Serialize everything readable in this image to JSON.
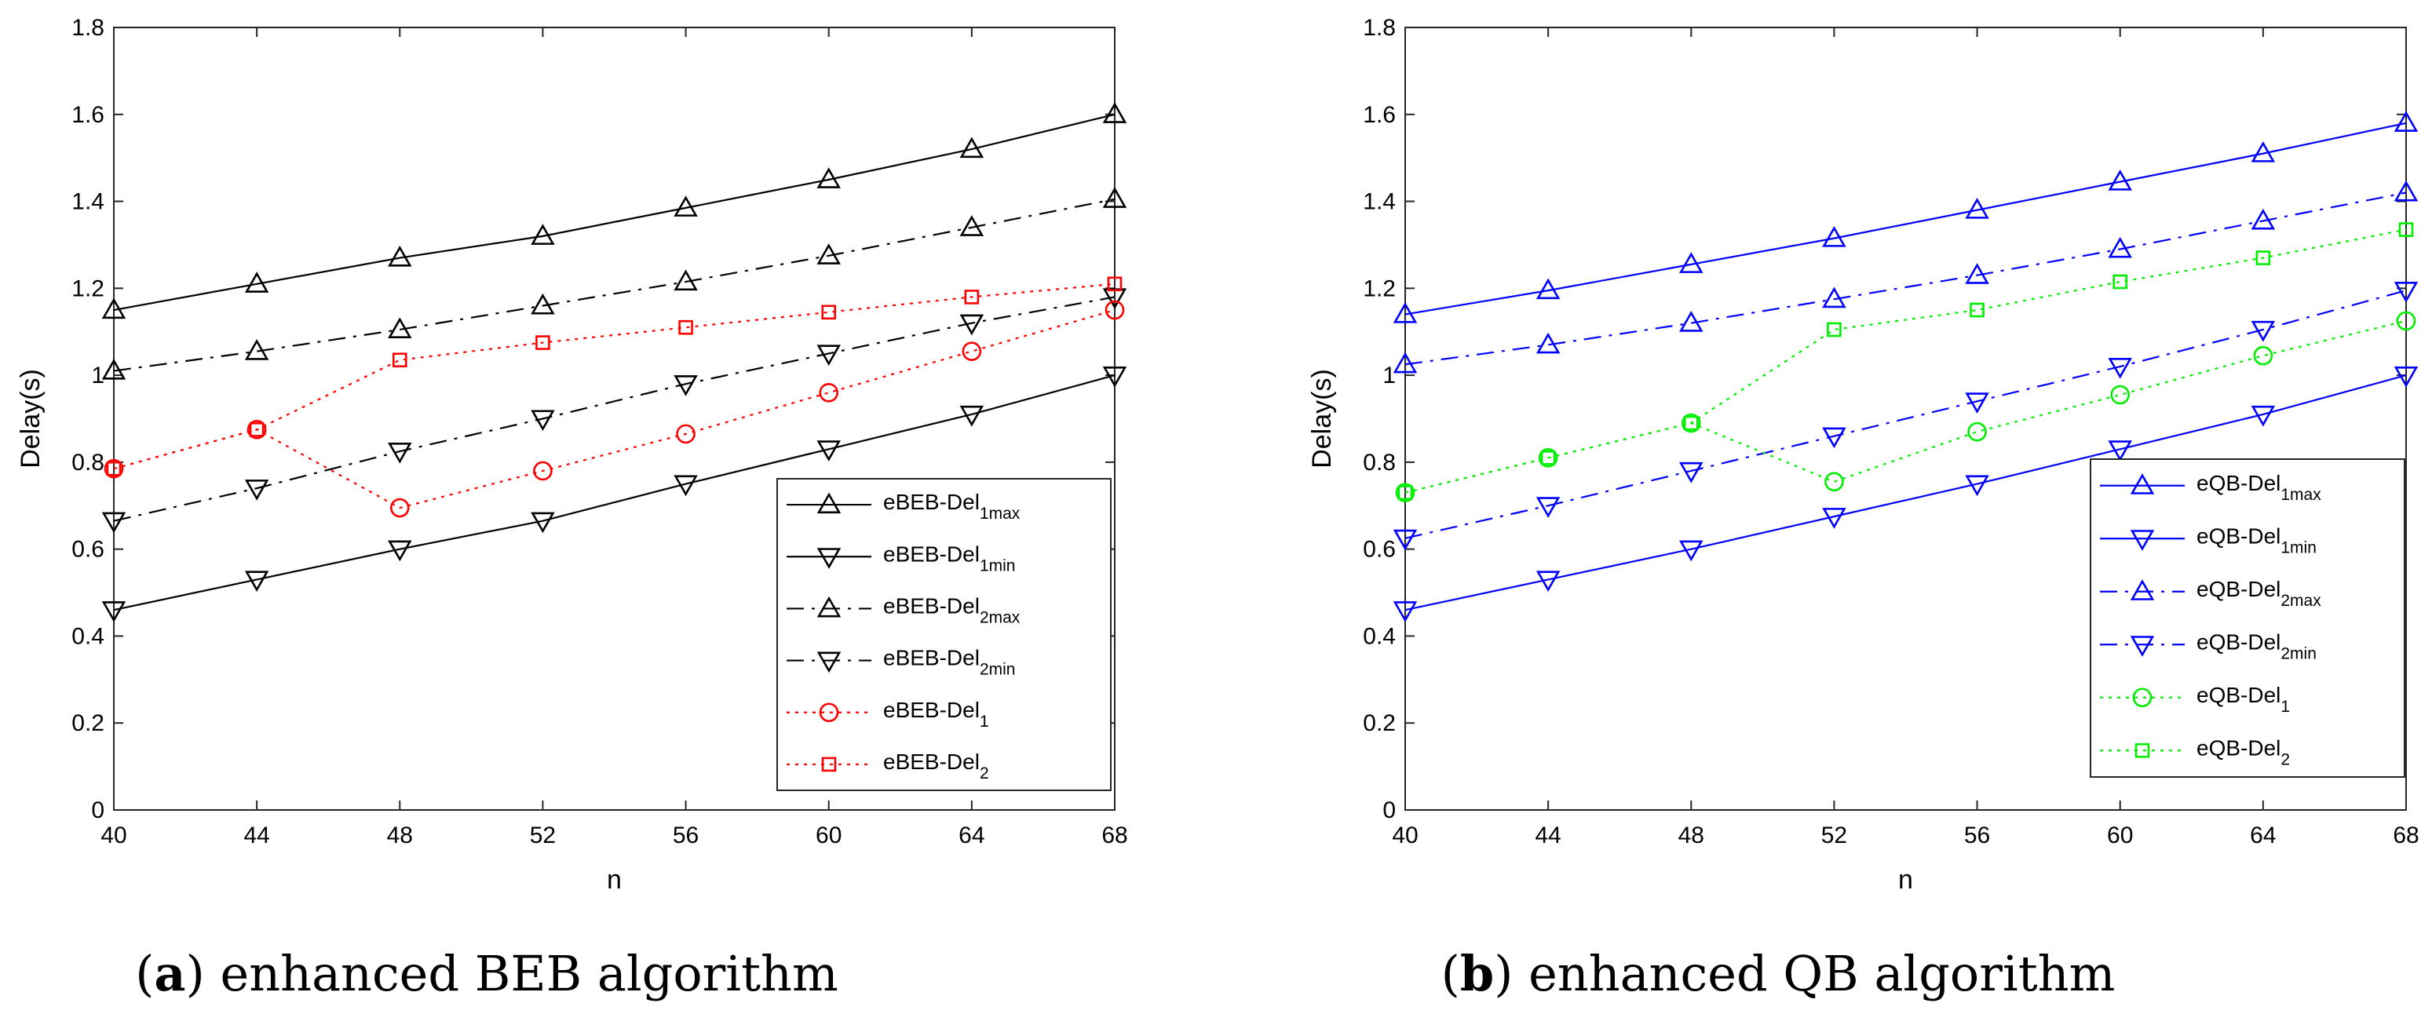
{
  "chart_data": [
    {
      "type": "line",
      "id": "a",
      "caption_letter": "a",
      "caption_text": "enhanced BEB algorithm",
      "xlabel": "n",
      "ylabel": "Delay(s)",
      "x": [
        40,
        44,
        48,
        52,
        56,
        60,
        64,
        68
      ],
      "xticks": [
        "40",
        "44",
        "48",
        "52",
        "56",
        "60",
        "64",
        "68"
      ],
      "yticks": [
        "0",
        "0.2",
        "0.4",
        "0.6",
        "0.8",
        "1",
        "1.2",
        "1.4",
        "1.6",
        "1.8"
      ],
      "xlim": [
        40,
        68
      ],
      "ylim": [
        0,
        1.8
      ],
      "legend_position": "bottom-right",
      "series": [
        {
          "name": "eBEB-Del",
          "sub": "1max",
          "color": "#000000",
          "dash": "solid",
          "marker": "triangle-up",
          "values": [
            1.15,
            1.21,
            1.27,
            1.32,
            1.385,
            1.45,
            1.52,
            1.6
          ]
        },
        {
          "name": "eBEB-Del",
          "sub": "1min",
          "color": "#000000",
          "dash": "solid",
          "marker": "triangle-down",
          "values": [
            0.46,
            0.53,
            0.6,
            0.665,
            0.75,
            0.83,
            0.91,
            1.0
          ]
        },
        {
          "name": "eBEB-Del",
          "sub": "2max",
          "color": "#000000",
          "dash": "dashdot",
          "marker": "triangle-up",
          "values": [
            1.01,
            1.055,
            1.105,
            1.16,
            1.215,
            1.275,
            1.34,
            1.405
          ]
        },
        {
          "name": "eBEB-Del",
          "sub": "2min",
          "color": "#000000",
          "dash": "dashdot",
          "marker": "triangle-down",
          "values": [
            0.665,
            0.74,
            0.825,
            0.9,
            0.98,
            1.05,
            1.12,
            1.18
          ]
        },
        {
          "name": "eBEB-Del",
          "sub": "1",
          "color": "#ff0000",
          "dash": "dotted",
          "marker": "circle",
          "values": [
            0.785,
            0.875,
            0.695,
            0.78,
            0.865,
            0.96,
            1.055,
            1.15
          ]
        },
        {
          "name": "eBEB-Del",
          "sub": "2",
          "color": "#ff0000",
          "dash": "dotted",
          "marker": "square",
          "values": [
            0.785,
            0.875,
            1.035,
            1.075,
            1.11,
            1.145,
            1.18,
            1.21
          ]
        }
      ]
    },
    {
      "type": "line",
      "id": "b",
      "caption_letter": "b",
      "caption_text": "enhanced QB algorithm",
      "xlabel": "n",
      "ylabel": "Delay(s)",
      "x": [
        40,
        44,
        48,
        52,
        56,
        60,
        64,
        68
      ],
      "xticks": [
        "40",
        "44",
        "48",
        "52",
        "56",
        "60",
        "64",
        "68"
      ],
      "yticks": [
        "0",
        "0.2",
        "0.4",
        "0.6",
        "0.8",
        "1",
        "1.2",
        "1.4",
        "1.6",
        "1.8"
      ],
      "xlim": [
        40,
        68
      ],
      "ylim": [
        0,
        1.8
      ],
      "legend_position": "bottom-right",
      "series": [
        {
          "name": "eQB-Del",
          "sub": "1max",
          "color": "#0000ff",
          "dash": "solid",
          "marker": "triangle-up",
          "values": [
            1.14,
            1.195,
            1.255,
            1.315,
            1.38,
            1.445,
            1.51,
            1.58
          ]
        },
        {
          "name": "eQB-Del",
          "sub": "1min",
          "color": "#0000ff",
          "dash": "solid",
          "marker": "triangle-down",
          "values": [
            0.46,
            0.53,
            0.6,
            0.675,
            0.75,
            0.83,
            0.91,
            1.0
          ]
        },
        {
          "name": "eQB-Del",
          "sub": "2max",
          "color": "#0000ff",
          "dash": "dashdot",
          "marker": "triangle-up",
          "values": [
            1.025,
            1.07,
            1.12,
            1.175,
            1.23,
            1.29,
            1.355,
            1.42
          ]
        },
        {
          "name": "eQB-Del",
          "sub": "2min",
          "color": "#0000ff",
          "dash": "dashdot",
          "marker": "triangle-down",
          "values": [
            0.625,
            0.7,
            0.78,
            0.86,
            0.94,
            1.02,
            1.105,
            1.195
          ]
        },
        {
          "name": "eQB-Del",
          "sub": "1",
          "color": "#00ee00",
          "dash": "dotted",
          "marker": "circle",
          "values": [
            0.73,
            0.81,
            0.89,
            0.755,
            0.87,
            0.955,
            1.045,
            1.125
          ]
        },
        {
          "name": "eQB-Del",
          "sub": "2",
          "color": "#00ee00",
          "dash": "dotted",
          "marker": "square",
          "values": [
            0.73,
            0.81,
            0.89,
            1.105,
            1.15,
            1.215,
            1.27,
            1.335
          ]
        }
      ]
    }
  ]
}
